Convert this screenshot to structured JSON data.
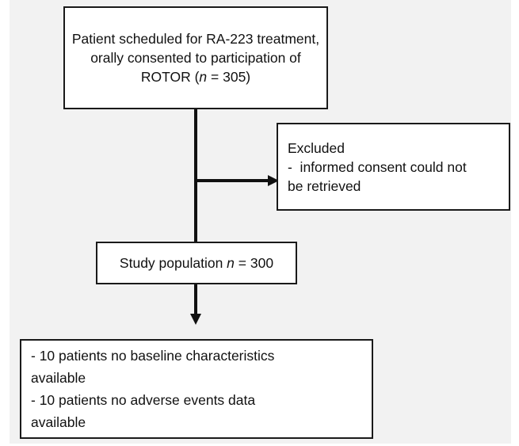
{
  "nodes": [
    {
      "lines": [
        [
          "Patient scheduled for RA-223 treatment,"
        ],
        [
          "orally consented to participation of"
        ],
        [
          "ROTOR (",
          "n",
          " = 305)"
        ]
      ]
    },
    {
      "lines": [
        [
          "Excluded"
        ],
        [
          "-  informed consent could not"
        ],
        [
          "be retrieved"
        ]
      ]
    },
    {
      "lines": [
        [
          "Study population ",
          "n",
          " = 300"
        ]
      ]
    },
    {
      "lines": [
        [
          "- 10 patients no baseline characteristics"
        ],
        [
          "available"
        ],
        [
          "- 10 patients no adverse events data"
        ],
        [
          "available"
        ]
      ]
    }
  ]
}
